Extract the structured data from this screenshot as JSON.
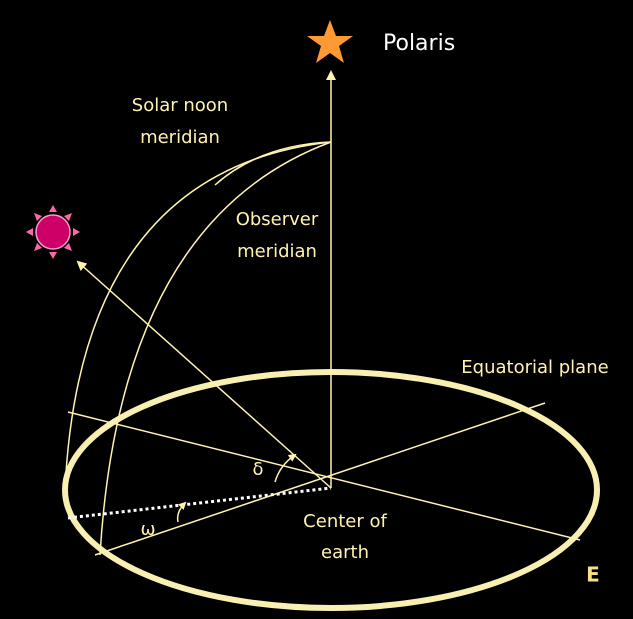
{
  "labels": {
    "polaris": "Polaris",
    "solar_noon_meridian": [
      "Solar noon",
      "meridian"
    ],
    "observer_meridian": [
      "Observer",
      "meridian"
    ],
    "equatorial_plane": "Equatorial plane",
    "delta": "δ",
    "omega": "ω",
    "center_of_earth": [
      "Center of",
      "earth"
    ],
    "east": "E"
  }
}
